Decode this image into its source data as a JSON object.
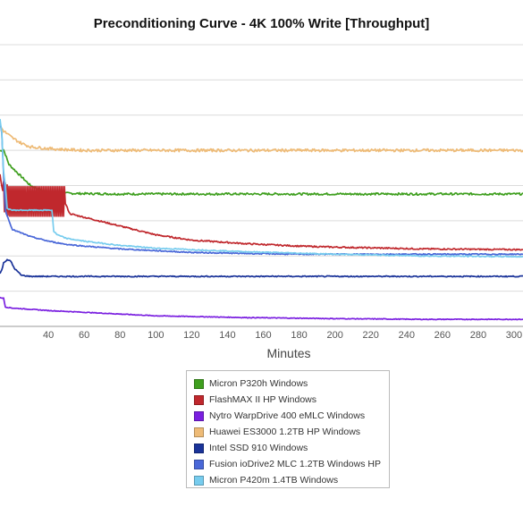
{
  "chart_data": {
    "type": "line",
    "title": "Preconditioning Curve - 4K 100% Write [Throughput]",
    "xlabel": "Minutes",
    "ylabel": "",
    "xticks": [
      40,
      60,
      80,
      100,
      120,
      140,
      160,
      180,
      200,
      220,
      240,
      260,
      280,
      300
    ],
    "xlim": [
      13,
      305
    ],
    "ylim": [
      0,
      8
    ],
    "grid": true,
    "legend_position": "bottom",
    "series": [
      {
        "name": "Micron P320h Windows",
        "color": "#3f9f1f",
        "x": [
          13,
          15,
          18,
          22,
          26,
          30,
          35,
          40,
          50,
          60,
          80,
          100,
          150,
          200,
          250,
          305
        ],
        "y": [
          4.98,
          5.02,
          4.6,
          4.4,
          4.2,
          4.0,
          3.88,
          3.82,
          3.78,
          3.77,
          3.76,
          3.76,
          3.76,
          3.76,
          3.76,
          3.76
        ],
        "noise": 0.03
      },
      {
        "name": "FlashMAX II HP Windows",
        "color": "#c0282d",
        "x": [
          13,
          15,
          18,
          22,
          26,
          30,
          35,
          40,
          45,
          49,
          52,
          60,
          80,
          100,
          120,
          150,
          180,
          200,
          250,
          305
        ],
        "y": [
          4.3,
          3.7,
          3.55,
          3.55,
          3.55,
          3.55,
          3.55,
          3.55,
          3.55,
          3.55,
          3.2,
          3.1,
          2.85,
          2.6,
          2.45,
          2.35,
          2.28,
          2.25,
          2.2,
          2.18
        ],
        "oscillate": [
          15,
          49
        ],
        "noise": 0.02
      },
      {
        "name": "Nytro WarpDrive 400 eMLC Windows",
        "color": "#7a1fe0",
        "x": [
          13,
          15,
          16,
          20,
          40,
          60,
          80,
          100,
          150,
          200,
          250,
          305
        ],
        "y": [
          0.82,
          0.8,
          0.55,
          0.52,
          0.45,
          0.4,
          0.35,
          0.3,
          0.25,
          0.22,
          0.2,
          0.2
        ],
        "noise": 0.01
      },
      {
        "name": "Huawei ES3000 1.2TB HP Windows",
        "color": "#eebb77",
        "x": [
          13,
          15,
          20,
          25,
          30,
          40,
          50,
          60,
          80,
          100,
          150,
          200,
          250,
          305
        ],
        "y": [
          5.7,
          5.55,
          5.35,
          5.2,
          5.1,
          5.05,
          5.02,
          5.0,
          5.0,
          5.0,
          5.0,
          5.0,
          5.0,
          5.0
        ],
        "noise": 0.04
      },
      {
        "name": "Intel SSD 910 Windows",
        "color": "#1a3399",
        "x": [
          13,
          14,
          15,
          17,
          19,
          21,
          25,
          30,
          40,
          60,
          100,
          150,
          200,
          250,
          305
        ],
        "y": [
          1.5,
          1.6,
          1.8,
          1.9,
          1.85,
          1.65,
          1.45,
          1.42,
          1.42,
          1.42,
          1.42,
          1.42,
          1.42,
          1.42,
          1.42
        ],
        "noise": 0.015
      },
      {
        "name": "Fusion ioDrive2 MLC 1.2TB Windows HP",
        "color": "#4a68d8",
        "x": [
          13,
          14,
          15,
          16,
          18,
          20,
          25,
          30,
          40,
          50,
          60,
          80,
          100,
          120,
          150,
          180,
          200,
          250,
          305
        ],
        "y": [
          5.8,
          5.5,
          4.3,
          3.3,
          3.0,
          2.75,
          2.65,
          2.55,
          2.42,
          2.33,
          2.28,
          2.2,
          2.15,
          2.1,
          2.07,
          2.05,
          2.05,
          2.05,
          2.05
        ],
        "noise": 0.015
      },
      {
        "name": "Micron P420m 1.4TB Windows",
        "color": "#77ccee",
        "x": [
          13,
          14,
          15,
          16,
          17,
          20,
          25,
          30,
          35,
          40,
          42,
          43,
          45,
          50,
          60,
          70,
          80,
          100,
          150,
          200,
          250,
          305
        ],
        "y": [
          5.9,
          5.5,
          4.4,
          4.0,
          3.35,
          3.3,
          3.3,
          3.3,
          3.3,
          3.3,
          3.3,
          2.7,
          2.6,
          2.5,
          2.42,
          2.36,
          2.3,
          2.22,
          2.12,
          2.05,
          2.0,
          1.98
        ],
        "noise": 0.015
      }
    ]
  }
}
